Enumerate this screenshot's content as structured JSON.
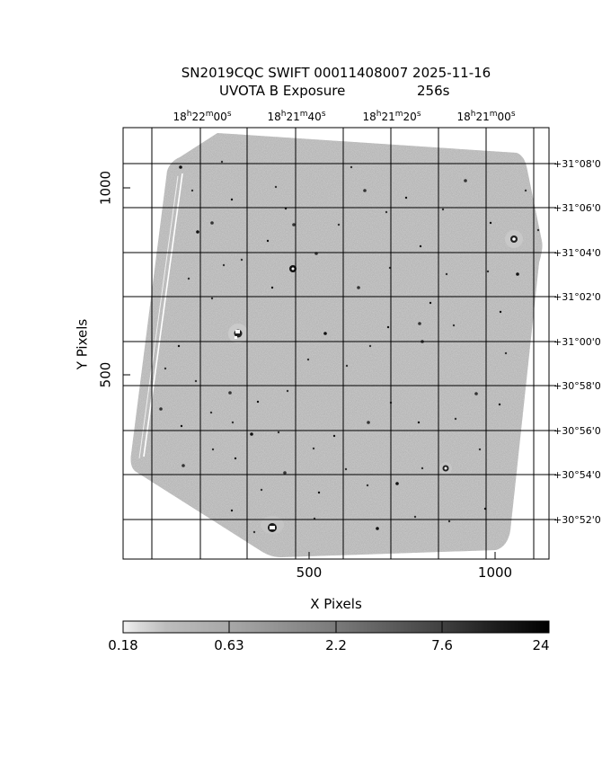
{
  "title": {
    "line1": "SN2019CQC  SWIFT  00011408007  2025-11-16",
    "line2_label": "UVOTA  B  Exposure",
    "line2_value": "256s"
  },
  "ra_ticks": [
    {
      "h": "18",
      "hu": "h",
      "m": "22",
      "mu": "m",
      "s": "00",
      "su": "s"
    },
    {
      "h": "18",
      "hu": "h",
      "m": "21",
      "mu": "m",
      "s": "40",
      "su": "s"
    },
    {
      "h": "18",
      "hu": "h",
      "m": "21",
      "mu": "m",
      "s": "20",
      "su": "s"
    },
    {
      "h": "18",
      "hu": "h",
      "m": "21",
      "mu": "m",
      "s": "00",
      "su": "s"
    }
  ],
  "dec_ticks": [
    "+31°08'0",
    "+31°06'0",
    "+31°04'0",
    "+31°02'0",
    "+31°00'0",
    "+30°58'0",
    "+30°56'0",
    "+30°54'0",
    "+30°52'0"
  ],
  "x_axis": {
    "label": "X Pixels",
    "ticks": [
      "500",
      "1000"
    ]
  },
  "y_axis": {
    "label": "Y Pixels",
    "ticks": [
      "1000",
      "500"
    ]
  },
  "colorbar": {
    "ticks": [
      "0.18",
      "0.63",
      "2.2",
      "7.6",
      "24"
    ]
  }
}
